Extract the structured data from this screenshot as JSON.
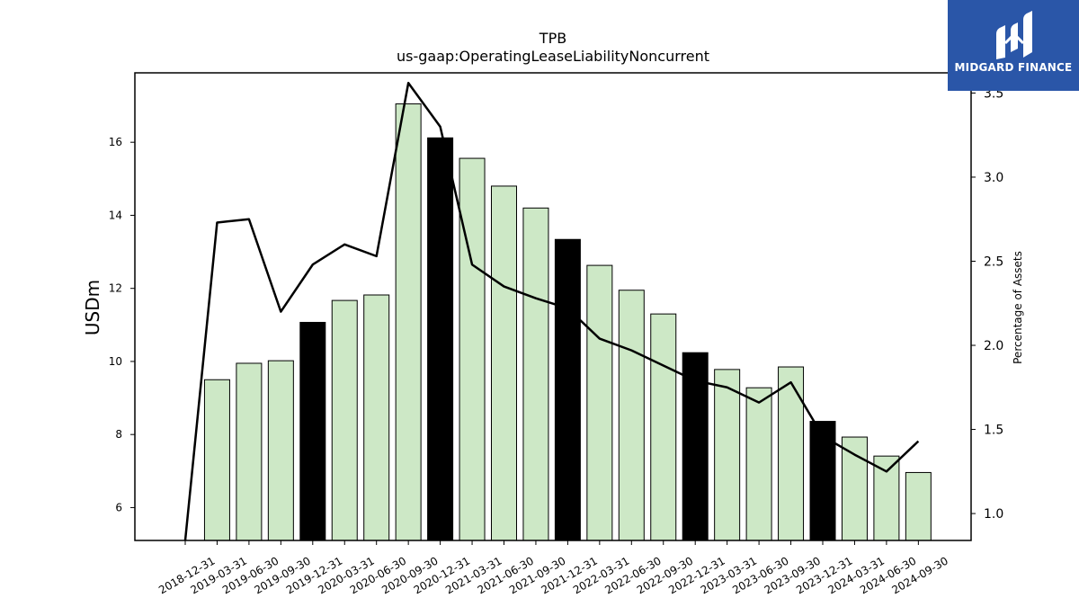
{
  "chart_data": {
    "type": "bar",
    "title": "TPB",
    "subtitle": "us-gaap:OperatingLeaseLiabilityNoncurrent",
    "ylabel": "USDm",
    "ylabel_right": "Percentage of Assets",
    "ylim": [
      5.1,
      17.9
    ],
    "ylim_right": [
      0.84,
      3.62
    ],
    "yticks": [
      6,
      8,
      10,
      12,
      14,
      16
    ],
    "yticks_right": [
      1.0,
      1.5,
      2.0,
      2.5,
      3.0,
      3.5
    ],
    "categories": [
      "2018-12-31",
      "2019-03-31",
      "2019-06-30",
      "2019-09-30",
      "2019-12-31",
      "2020-03-31",
      "2020-06-30",
      "2020-09-30",
      "2020-12-31",
      "2021-03-31",
      "2021-06-30",
      "2021-09-30",
      "2021-12-31",
      "2022-03-31",
      "2022-06-30",
      "2022-09-30",
      "2022-12-31",
      "2023-03-31",
      "2023-06-30",
      "2023-09-30",
      "2023-12-31",
      "2024-03-31",
      "2024-06-30",
      "2024-09-30"
    ],
    "series": [
      {
        "type": "bar",
        "values": [
          null,
          9.5,
          9.95,
          10.02,
          11.07,
          11.67,
          11.82,
          17.05,
          16.12,
          15.56,
          14.8,
          14.2,
          13.34,
          12.63,
          11.95,
          11.3,
          10.24,
          9.78,
          9.28,
          9.85,
          8.36,
          7.93,
          7.41,
          6.96
        ],
        "highlight": [
          "2019-12-31",
          "2020-12-31",
          "2021-12-31",
          "2022-12-31",
          "2023-12-31"
        ],
        "colors": {
          "normal": "#cde8c6",
          "highlight": "#000000"
        }
      },
      {
        "type": "line",
        "axis": "right",
        "values": [
          0.84,
          2.73,
          2.75,
          2.2,
          2.48,
          2.6,
          2.53,
          3.56,
          3.3,
          2.48,
          2.35,
          2.28,
          2.22,
          2.04,
          1.97,
          1.88,
          1.79,
          1.75,
          1.66,
          1.78,
          1.46,
          1.35,
          1.25,
          1.43
        ],
        "color": "#000000"
      }
    ]
  },
  "logo": {
    "text": "MIDGARD FINANCE",
    "color": "#2a56a8"
  }
}
